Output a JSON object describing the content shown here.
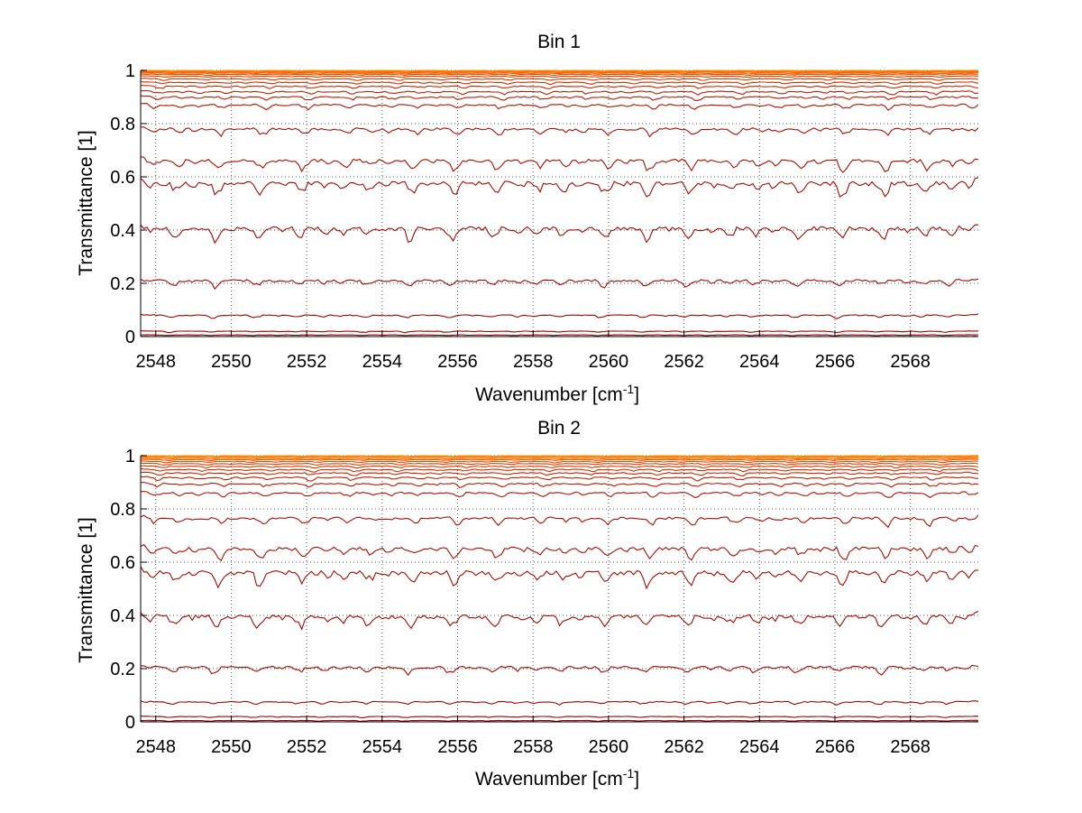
{
  "chart_data": [
    {
      "type": "line",
      "title": "Bin 1",
      "xlabel": "Wavenumber [cm",
      "xlabel_sup": "-1",
      "xlabel_end": "]",
      "ylabel": "Transmittance [1]",
      "xlim": [
        2547.6,
        2569.8
      ],
      "ylim": [
        0,
        1
      ],
      "xticks": [
        2548,
        2550,
        2552,
        2554,
        2556,
        2558,
        2560,
        2562,
        2564,
        2566,
        2568
      ],
      "yticks": [
        0,
        0.2,
        0.4,
        0.6,
        0.8,
        1
      ],
      "ytick_labels": [
        "0",
        "0.2",
        "0.4",
        "0.6",
        "0.8",
        "1"
      ],
      "grid": true,
      "series_levels": [
        1.0,
        0.998,
        0.996,
        0.994,
        0.99,
        0.985,
        0.978,
        0.968,
        0.955,
        0.94,
        0.92,
        0.9,
        0.87,
        0.78,
        0.66,
        0.575,
        0.405,
        0.21,
        0.08,
        0.02,
        0.006,
        0.0
      ],
      "series_colors": [
        "#ff9900",
        "#ff8c00",
        "#ff7a00",
        "#ff6600",
        "#f05a00",
        "#e84e00",
        "#e04400",
        "#d83a00",
        "#d03000",
        "#c82800",
        "#c02000",
        "#b81a00",
        "#b01400",
        "#aa1000",
        "#a80e00",
        "#a60c00",
        "#a40a00",
        "#a20800",
        "#a00600",
        "#9a0400",
        "#940200",
        "#8b0000"
      ],
      "line_width": 1.1
    },
    {
      "type": "line",
      "title": "Bin 2",
      "xlabel": "Wavenumber [cm",
      "xlabel_sup": "-1",
      "xlabel_end": "]",
      "ylabel": "Transmittance [1]",
      "xlim": [
        2547.6,
        2569.8
      ],
      "ylim": [
        0,
        1
      ],
      "xticks": [
        2548,
        2550,
        2552,
        2554,
        2556,
        2558,
        2560,
        2562,
        2564,
        2566,
        2568
      ],
      "yticks": [
        0,
        0.2,
        0.4,
        0.6,
        0.8,
        1
      ],
      "ytick_labels": [
        "0",
        "0.2",
        "0.4",
        "0.6",
        "0.8",
        "1"
      ],
      "grid": true,
      "series_levels": [
        1.0,
        0.998,
        0.995,
        0.99,
        0.985,
        0.978,
        0.97,
        0.96,
        0.948,
        0.935,
        0.918,
        0.895,
        0.86,
        0.765,
        0.65,
        0.56,
        0.395,
        0.205,
        0.075,
        0.02,
        0.005,
        0.0
      ],
      "series_colors": [
        "#ff9900",
        "#ff8c00",
        "#ff7a00",
        "#ff6600",
        "#f05a00",
        "#e84e00",
        "#e04400",
        "#d83a00",
        "#d03000",
        "#c82800",
        "#c02000",
        "#b81a00",
        "#b01400",
        "#aa1000",
        "#a80e00",
        "#a60c00",
        "#a40a00",
        "#a20800",
        "#a00600",
        "#9a0400",
        "#940200",
        "#8b0000"
      ],
      "line_width": 1.1
    }
  ]
}
